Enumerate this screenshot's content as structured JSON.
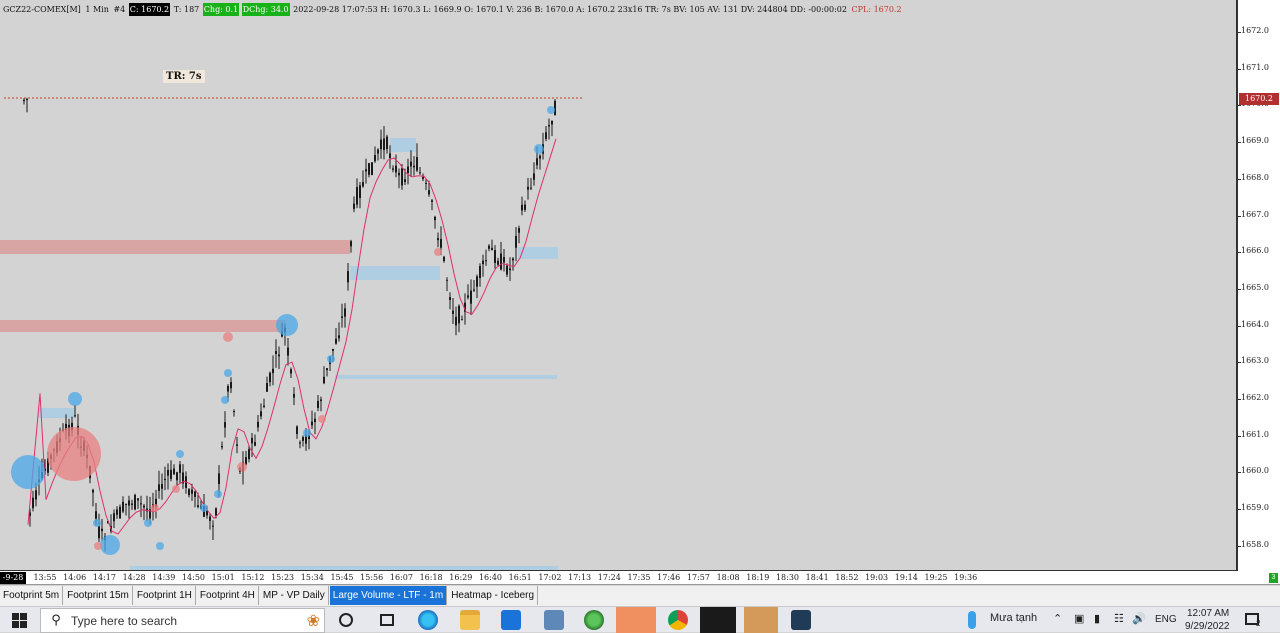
{
  "info": {
    "symbol": "GCZ22-COMEX[M]",
    "interval": "1 Min",
    "ref": "#4",
    "current": "C: 1670.2",
    "ticks": "T: 187",
    "chg": "Chg: 0.1",
    "dchg": "DChg: 34.0",
    "details": "2022-09-28 17:07:53 H: 1670.3 L: 1669.9 O: 1670.1 V: 236 B: 1670.0 A: 1670.2 23x16 TR: 7s BV: 105 AV: 131 DV: 244804 DD: -00:00:02",
    "cpl": "CPL: 1670.2"
  },
  "tr_label": "TR: 7s",
  "price_axis": {
    "labels": [
      "1672.0",
      "1671.0",
      "1670.0",
      "1669.0",
      "1668.0",
      "1667.0",
      "1666.0",
      "1665.0",
      "1664.0",
      "1663.0",
      "1662.0",
      "1661.0",
      "1660.0",
      "1659.0",
      "1658.0"
    ],
    "current_badge": "1670.2"
  },
  "time_axis": {
    "date_badge": "-9-28",
    "labels": [
      "13:55",
      "14:06",
      "14:17",
      "14:28",
      "14:39",
      "14:50",
      "15:01",
      "15:12",
      "15:23",
      "15:34",
      "15:45",
      "15:56",
      "16:07",
      "16:18",
      "16:29",
      "16:40",
      "16:51",
      "17:02",
      "17:13",
      "17:24",
      "17:35",
      "17:46",
      "17:57",
      "18:08",
      "18:19",
      "18:30",
      "18:41",
      "18:52",
      "19:03",
      "19:14",
      "19:25",
      "19:36"
    ],
    "corner": "3"
  },
  "tabs": [
    {
      "label": "Footprint 5m",
      "active": false
    },
    {
      "label": "Footprint 15m",
      "active": false
    },
    {
      "label": "Footprint 1H",
      "active": false
    },
    {
      "label": "Footprint 4H",
      "active": false
    },
    {
      "label": "MP - VP Daily",
      "active": false
    },
    {
      "label": "Large Volume - LTF - 1m",
      "active": true
    },
    {
      "label": "Heatmap - Iceberg",
      "active": false
    }
  ],
  "taskbar": {
    "search_placeholder": "Type here to search",
    "weather": "Mưa tạnh",
    "lang": "ENG",
    "time": "12:07 AM",
    "date": "9/29/2022",
    "notif": "2"
  },
  "colors": {
    "bg": "#d3d3d3",
    "candle": "#1a1a1a",
    "ma": "#e0306a",
    "buy_bubble": "#4aa8e8",
    "sell_bubble": "#e88080",
    "zone_red": "#d99b9b",
    "zone_blue": "#a9cde3"
  }
}
